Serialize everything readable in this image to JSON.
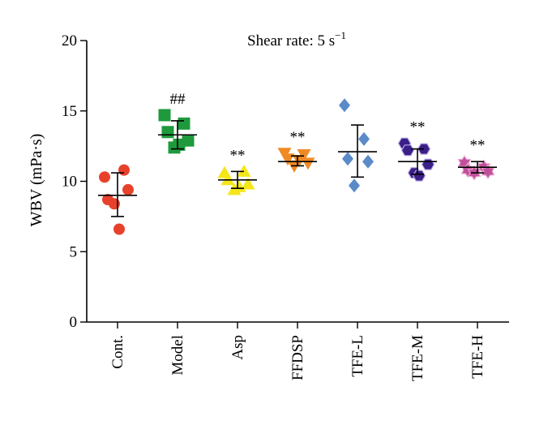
{
  "chart_data": {
    "type": "scatter",
    "title": "Shear rate: 5 s",
    "title_superscript": "−1",
    "ylabel": "WBV (mPa·s)",
    "xlabel": "",
    "ylim": [
      0,
      20
    ],
    "yticks": [
      "0",
      "5",
      "10",
      "15",
      "20"
    ],
    "categories": [
      "Cont.",
      "Model",
      "Asp",
      "FFDSP",
      "TFE-L",
      "TFE-M",
      "TFE-H"
    ],
    "groups": [
      {
        "name": "Cont.",
        "marker": "circle",
        "color": "#e8412b",
        "mean": 9.0,
        "err_low": 7.5,
        "err_high": 10.6,
        "annotation": "",
        "points": [
          10.3,
          10.8,
          8.7,
          9.4,
          8.4,
          6.6
        ]
      },
      {
        "name": "Model",
        "marker": "square",
        "color": "#1e9a3c",
        "mean": 13.3,
        "err_low": 12.3,
        "err_high": 14.3,
        "annotation": "##",
        "points": [
          14.7,
          14.1,
          13.5,
          12.9,
          12.4,
          12.6
        ]
      },
      {
        "name": "Asp",
        "marker": "triangle-up",
        "color": "#f5e61a",
        "mean": 10.1,
        "err_low": 9.5,
        "err_high": 10.7,
        "annotation": "**",
        "points": [
          10.6,
          10.7,
          10.1,
          9.8,
          9.4,
          9.6
        ]
      },
      {
        "name": "FFDSP",
        "marker": "triangle-down",
        "color": "#f08a24",
        "mean": 11.4,
        "err_low": 11.1,
        "err_high": 11.8,
        "annotation": "**",
        "points": [
          12.0,
          11.9,
          11.6,
          11.3,
          11.1,
          11.5
        ]
      },
      {
        "name": "TFE-L",
        "marker": "diamond",
        "color": "#5b8ac9",
        "mean": 12.1,
        "err_low": 10.3,
        "err_high": 14.0,
        "annotation": "",
        "points": [
          15.4,
          13.0,
          11.6,
          11.4,
          9.7
        ]
      },
      {
        "name": "TFE-M",
        "marker": "hexagon",
        "color": "#3a1f86",
        "mean": 11.4,
        "err_low": 10.5,
        "err_high": 12.3,
        "annotation": "**",
        "points": [
          12.7,
          12.3,
          12.2,
          11.2,
          10.6,
          10.4
        ]
      },
      {
        "name": "TFE-H",
        "marker": "star",
        "color": "#c0509a",
        "mean": 11.0,
        "err_low": 10.6,
        "err_high": 11.4,
        "annotation": "**",
        "points": [
          11.3,
          11.0,
          10.8,
          10.7,
          10.6
        ]
      }
    ],
    "grid": false,
    "legend": "none"
  }
}
